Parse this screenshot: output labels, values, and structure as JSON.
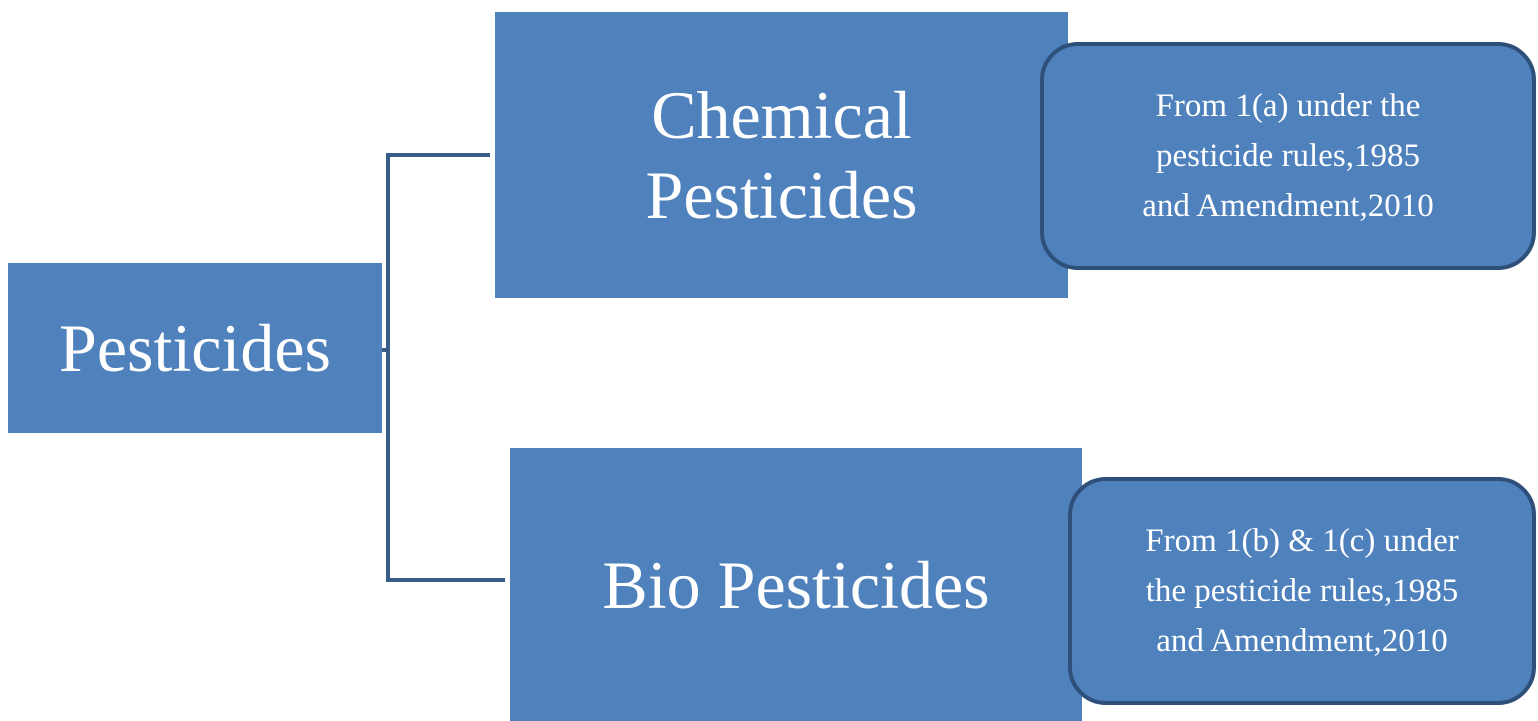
{
  "nodes": [
    {
      "lines": [
        "Pesticides"
      ]
    },
    {
      "lines": [
        "Chemical",
        "Pesticides"
      ]
    },
    {
      "lines": [
        "From 1(a) under the",
        "pesticide rules,1985",
        "and Amendment,2010"
      ]
    },
    {
      "lines": [
        "Bio Pesticides"
      ]
    },
    {
      "lines": [
        "From 1(b) & 1(c) under",
        "the pesticide rules,1985",
        "and Amendment,2010"
      ]
    }
  ]
}
